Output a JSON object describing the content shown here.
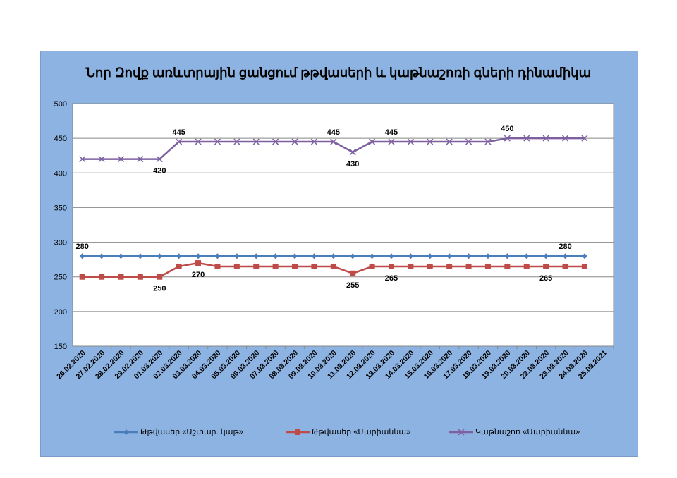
{
  "chart_data": {
    "type": "line",
    "title": "Նոր Զովք առևտրային ցանցում թթվասերի և կաթնաշոռի գների դինամիկա",
    "categories": [
      "26.02.2020",
      "27.02.2020",
      "28.02.2020",
      "29.02.2020",
      "01.03.2020",
      "02.03.2020",
      "03.03.2020",
      "04.03.2020",
      "05.03.2020",
      "06.03.2020",
      "07.03.2020",
      "08.03.2020",
      "09.03.2020",
      "10.03.2020",
      "11.03.2020",
      "12.03.2020",
      "13.03.2020",
      "14.03.2020",
      "15.03.2020",
      "16.03.2020",
      "17.03.2020",
      "18.03.2020",
      "19.03.2020",
      "20.03.2020",
      "22.03.2020",
      "23.03.2020",
      "24.03.2020",
      "25.03.2021"
    ],
    "ylim": [
      150,
      500
    ],
    "yticks": [
      150,
      200,
      250,
      300,
      350,
      400,
      450,
      500
    ],
    "grid": true,
    "legend": "bottom",
    "series": [
      {
        "name": "Թթվասեր «Աշտար. կաթ»",
        "color": "#4a7ebb",
        "marker": "diamond",
        "values": [
          280,
          280,
          280,
          280,
          280,
          280,
          280,
          280,
          280,
          280,
          280,
          280,
          280,
          280,
          280,
          280,
          280,
          280,
          280,
          280,
          280,
          280,
          280,
          280,
          280,
          280,
          280,
          null
        ],
        "labels": [
          {
            "i": 0,
            "text": "280",
            "pos": "above"
          },
          {
            "i": 25,
            "text": "280",
            "pos": "above"
          }
        ]
      },
      {
        "name": "Թթվասեր «Մարիաննա»",
        "color": "#be4b48",
        "marker": "square",
        "values": [
          250,
          250,
          250,
          250,
          250,
          265,
          270,
          265,
          265,
          265,
          265,
          265,
          265,
          265,
          255,
          265,
          265,
          265,
          265,
          265,
          265,
          265,
          265,
          265,
          265,
          265,
          265,
          null
        ],
        "labels": [
          {
            "i": 4,
            "text": "250",
            "pos": "below"
          },
          {
            "i": 6,
            "text": "270",
            "pos": "below"
          },
          {
            "i": 14,
            "text": "255",
            "pos": "below"
          },
          {
            "i": 16,
            "text": "265",
            "pos": "below"
          },
          {
            "i": 24,
            "text": "265",
            "pos": "below"
          }
        ]
      },
      {
        "name": "Կաթնաշոռ «Մարիաննա»",
        "color": "#7d60a0",
        "marker": "x",
        "values": [
          420,
          420,
          420,
          420,
          420,
          445,
          445,
          445,
          445,
          445,
          445,
          445,
          445,
          445,
          430,
          445,
          445,
          445,
          445,
          445,
          445,
          445,
          450,
          450,
          450,
          450,
          450,
          null
        ],
        "labels": [
          {
            "i": 4,
            "text": "420",
            "pos": "below"
          },
          {
            "i": 5,
            "text": "445",
            "pos": "above"
          },
          {
            "i": 13,
            "text": "445",
            "pos": "above"
          },
          {
            "i": 14,
            "text": "430",
            "pos": "below"
          },
          {
            "i": 16,
            "text": "445",
            "pos": "above"
          },
          {
            "i": 22,
            "text": "450",
            "pos": "above"
          }
        ]
      }
    ]
  }
}
